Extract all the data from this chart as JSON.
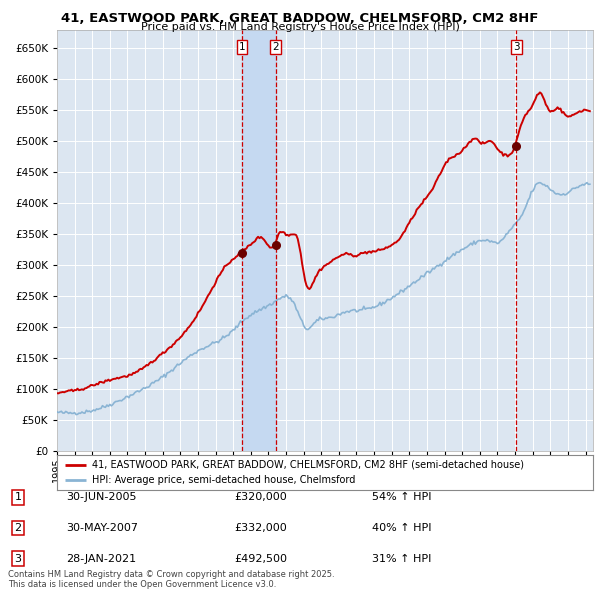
{
  "title": "41, EASTWOOD PARK, GREAT BADDOW, CHELMSFORD, CM2 8HF",
  "subtitle": "Price paid vs. HM Land Registry's House Price Index (HPI)",
  "background_color": "#ffffff",
  "plot_bg_color": "#dce6f1",
  "grid_color": "#ffffff",
  "red_line_color": "#cc0000",
  "blue_line_color": "#8ab4d4",
  "ylim": [
    0,
    680000
  ],
  "yticks": [
    0,
    50000,
    100000,
    150000,
    200000,
    250000,
    300000,
    350000,
    400000,
    450000,
    500000,
    550000,
    600000,
    650000
  ],
  "sale_dates": [
    "2005-06-30",
    "2007-05-30",
    "2021-01-28"
  ],
  "sale_prices": [
    320000,
    332000,
    492500
  ],
  "sale_labels": [
    "1",
    "2",
    "3"
  ],
  "sale_hpi_pct": [
    "54% ↑ HPI",
    "40% ↑ HPI",
    "31% ↑ HPI"
  ],
  "sale_date_strs": [
    "30-JUN-2005",
    "30-MAY-2007",
    "28-JAN-2021"
  ],
  "sale_price_strs": [
    "£320,000",
    "£332,000",
    "£492,500"
  ],
  "highlight_color": "#c5d9f1",
  "legend_red_label": "41, EASTWOOD PARK, GREAT BADDOW, CHELMSFORD, CM2 8HF (semi-detached house)",
  "legend_blue_label": "HPI: Average price, semi-detached house, Chelmsford",
  "footer_text": "Contains HM Land Registry data © Crown copyright and database right 2025.\nThis data is licensed under the Open Government Licence v3.0."
}
